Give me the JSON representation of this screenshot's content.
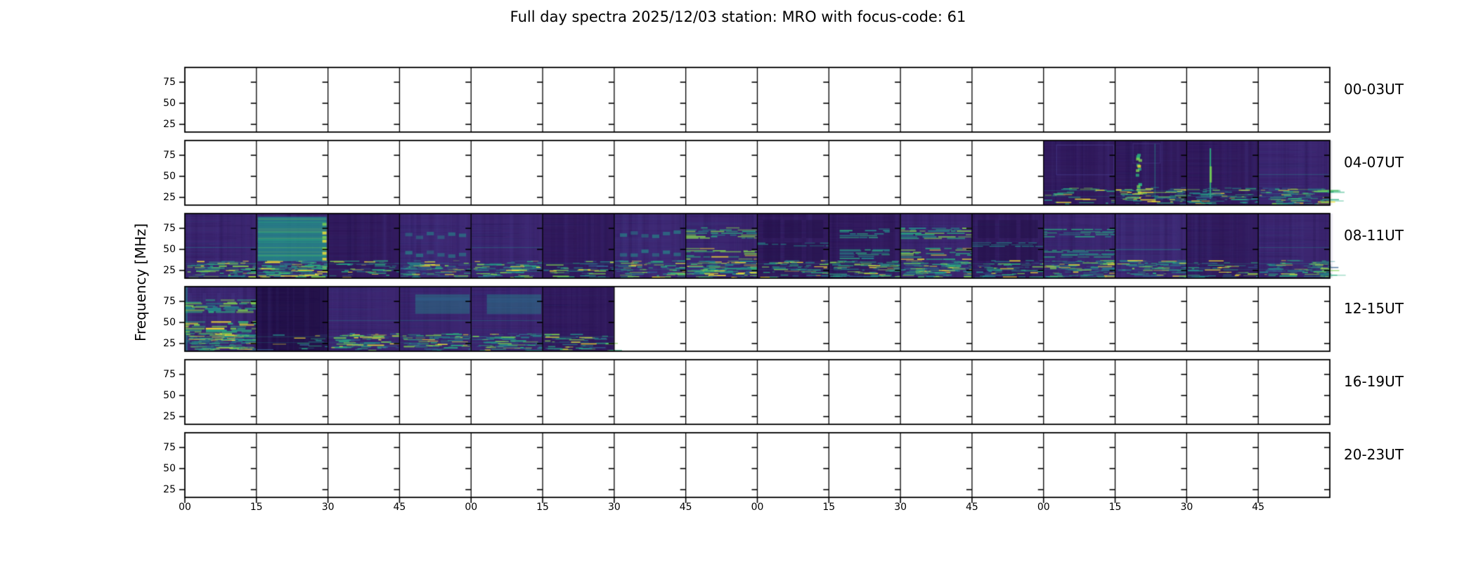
{
  "figure": {
    "kind": "matplotlib-multi-panel-spectrogram",
    "background": "#ffffff"
  },
  "chart_data": {
    "type": "heatmap",
    "title": "Full day spectra 2025/12/03 station: MRO with focus-code: 61",
    "ylabel": "Frequency [MHz]",
    "yticks": [
      "75",
      "50",
      "25"
    ],
    "ylim_mhz": [
      16,
      92
    ],
    "xticks": [
      "00",
      "15",
      "30",
      "45",
      "00",
      "15",
      "30",
      "45",
      "00",
      "15",
      "30",
      "45",
      "00",
      "15",
      "30",
      "45"
    ],
    "segments_per_row": 16,
    "minutes_per_segment": 15,
    "hours_per_row": 4,
    "grid": "panel-borders-only",
    "legend": "none",
    "colormap": "viridis",
    "palette": {
      "empty": "#ffffff",
      "deep_purple": "#24124a",
      "dark_purple": "#321b5e",
      "purple": "#3c2670",
      "slate": "#4a3f8f",
      "blue": "#33608d",
      "teal": "#23908b",
      "green": "#2ab07f",
      "lime": "#7ed34f",
      "yellow": "#f8e432",
      "frame": "#000000"
    },
    "rows": [
      {
        "label": "00-03UT",
        "segments": [
          null,
          null,
          null,
          null,
          null,
          null,
          null,
          null,
          null,
          null,
          null,
          null,
          null,
          null,
          null,
          null
        ]
      },
      {
        "label": "04-07UT",
        "segments": [
          null,
          null,
          null,
          null,
          null,
          null,
          null,
          null,
          null,
          null,
          null,
          null,
          "dark-box",
          "vgreen",
          "vline",
          "medium"
        ]
      },
      {
        "label": "08-11UT",
        "segments": [
          "medium",
          "block-bright",
          "dark",
          "checker",
          "medium",
          "dark",
          "checker",
          "bands-bright",
          "dark-blocks",
          "bands-boxed",
          "bands-bright",
          "dark-blocks",
          "bands",
          "stripes",
          "dark",
          "medium"
        ]
      },
      {
        "label": "12-15UT",
        "segments": [
          "bands-green",
          "dim",
          "medium",
          "box-teal",
          "box-teal",
          "dark",
          null,
          null,
          null,
          null,
          null,
          null,
          null,
          null,
          null,
          null
        ]
      },
      {
        "label": "16-19UT",
        "segments": [
          null,
          null,
          null,
          null,
          null,
          null,
          null,
          null,
          null,
          null,
          null,
          null,
          null,
          null,
          null,
          null
        ]
      },
      {
        "label": "20-23UT",
        "segments": [
          null,
          null,
          null,
          null,
          null,
          null,
          null,
          null,
          null,
          null,
          null,
          null,
          null,
          null,
          null,
          null
        ]
      }
    ]
  }
}
